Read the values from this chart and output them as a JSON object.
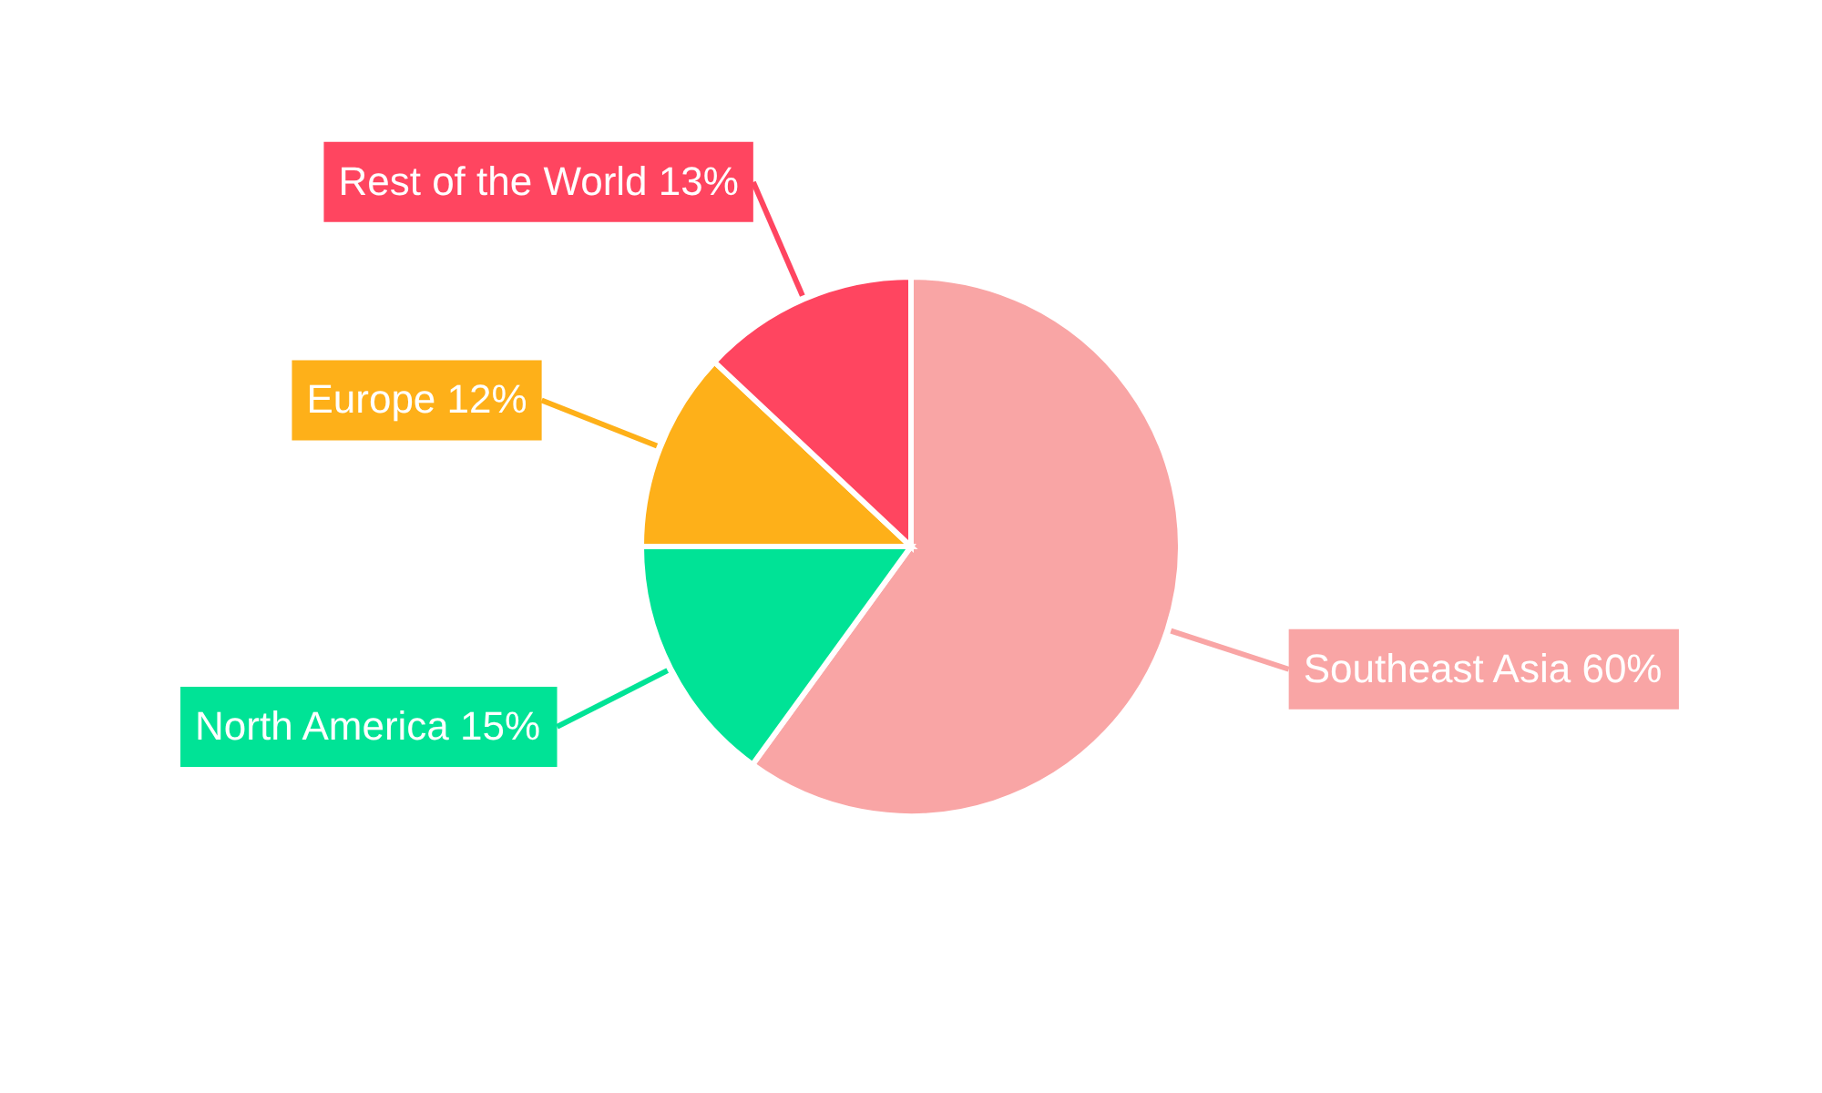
{
  "chart_data": {
    "type": "pie",
    "categories": [
      "Southeast Asia",
      "North America",
      "Europe",
      "Rest of the World"
    ],
    "values": [
      60,
      15,
      12,
      13
    ],
    "value_labels": [
      "60%",
      "15%",
      "12%",
      "13%"
    ],
    "colors": [
      "#f9a5a5",
      "#00e396",
      "#feb019",
      "#ff4560"
    ]
  }
}
